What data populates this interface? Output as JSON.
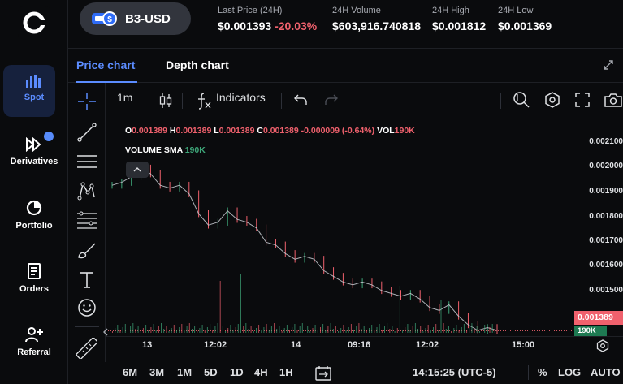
{
  "nav": {
    "items": [
      {
        "label": "Spot",
        "active": true
      },
      {
        "label": "Derivatives"
      },
      {
        "label": "Portfolio"
      },
      {
        "label": "Orders"
      },
      {
        "label": "Referral"
      }
    ]
  },
  "header": {
    "pair": "B3-USD",
    "last_price_label": "Last Price (24H)",
    "last_price": "$0.001393",
    "change": "-20.03%",
    "volume_label": "24H Volume",
    "volume": "$603,916.740818",
    "high_label": "24H High",
    "high": "$0.001812",
    "low_label": "24H Low",
    "low": "$0.001369"
  },
  "tabs": {
    "price": "Price chart",
    "depth": "Depth chart"
  },
  "toolbar": {
    "interval": "1m",
    "indicators": "Indicators"
  },
  "legend": {
    "o_key": "O",
    "o_val": "0.001389",
    "h_key": "H",
    "h_val": "0.001389",
    "l_key": "L",
    "l_val": "0.001389",
    "c_key": "C",
    "c_val": "0.001389",
    "chg": "-0.000009 (-0.64%)",
    "vol_key": "VOL",
    "vol_val": "190K",
    "sma_key": "VOLUME SMA",
    "sma_val": "190K"
  },
  "yaxis": {
    "ticks": [
      "0.002100",
      "0.002000",
      "0.001900",
      "0.001800",
      "0.001700",
      "0.001600",
      "0.001500"
    ],
    "price_tag": "0.001389",
    "vol_tag": "190K"
  },
  "xaxis": {
    "ticks": [
      "13",
      "12:02",
      "14",
      "09:16",
      "12:02",
      "15:00"
    ]
  },
  "bottom": {
    "timeframes": [
      "6M",
      "3M",
      "1M",
      "5D",
      "1D",
      "4H",
      "1H"
    ],
    "clock": "14:15:25 (UTC-5)",
    "pct": "%",
    "log": "LOG",
    "auto": "AUTO"
  },
  "chart_data": {
    "type": "line",
    "xlabel": "",
    "ylabel": "",
    "ylim": [
      0.00137,
      0.00214
    ],
    "x_ticks": [
      "13",
      "12:02",
      "14",
      "09:16",
      "12:02",
      "15:00"
    ],
    "y_ticks": [
      0.0021,
      0.002,
      0.0019,
      0.0018,
      0.0017,
      0.0016,
      0.0015
    ],
    "series": [
      {
        "values": [
          0.0019,
          0.00191,
          0.00193,
          0.00196,
          0.00194,
          0.0019,
          0.00189,
          0.0019,
          0.00187,
          0.0018,
          0.00176,
          0.00177,
          0.00181,
          0.00178,
          0.00177,
          0.00175,
          0.0017,
          0.00169,
          0.00166,
          0.00164,
          0.00165,
          0.00164,
          0.0016,
          0.00158,
          0.00156,
          0.00155,
          0.00156,
          0.00155,
          0.00153,
          0.00152,
          0.00151,
          0.00152,
          0.0015,
          0.00147,
          0.00146,
          0.00148,
          0.00144,
          0.00141,
          0.00139,
          0.0014,
          0.00139
        ]
      }
    ],
    "last_price": 0.001389,
    "colors": {
      "up": "#3ea87a",
      "down": "#f0616d"
    }
  }
}
